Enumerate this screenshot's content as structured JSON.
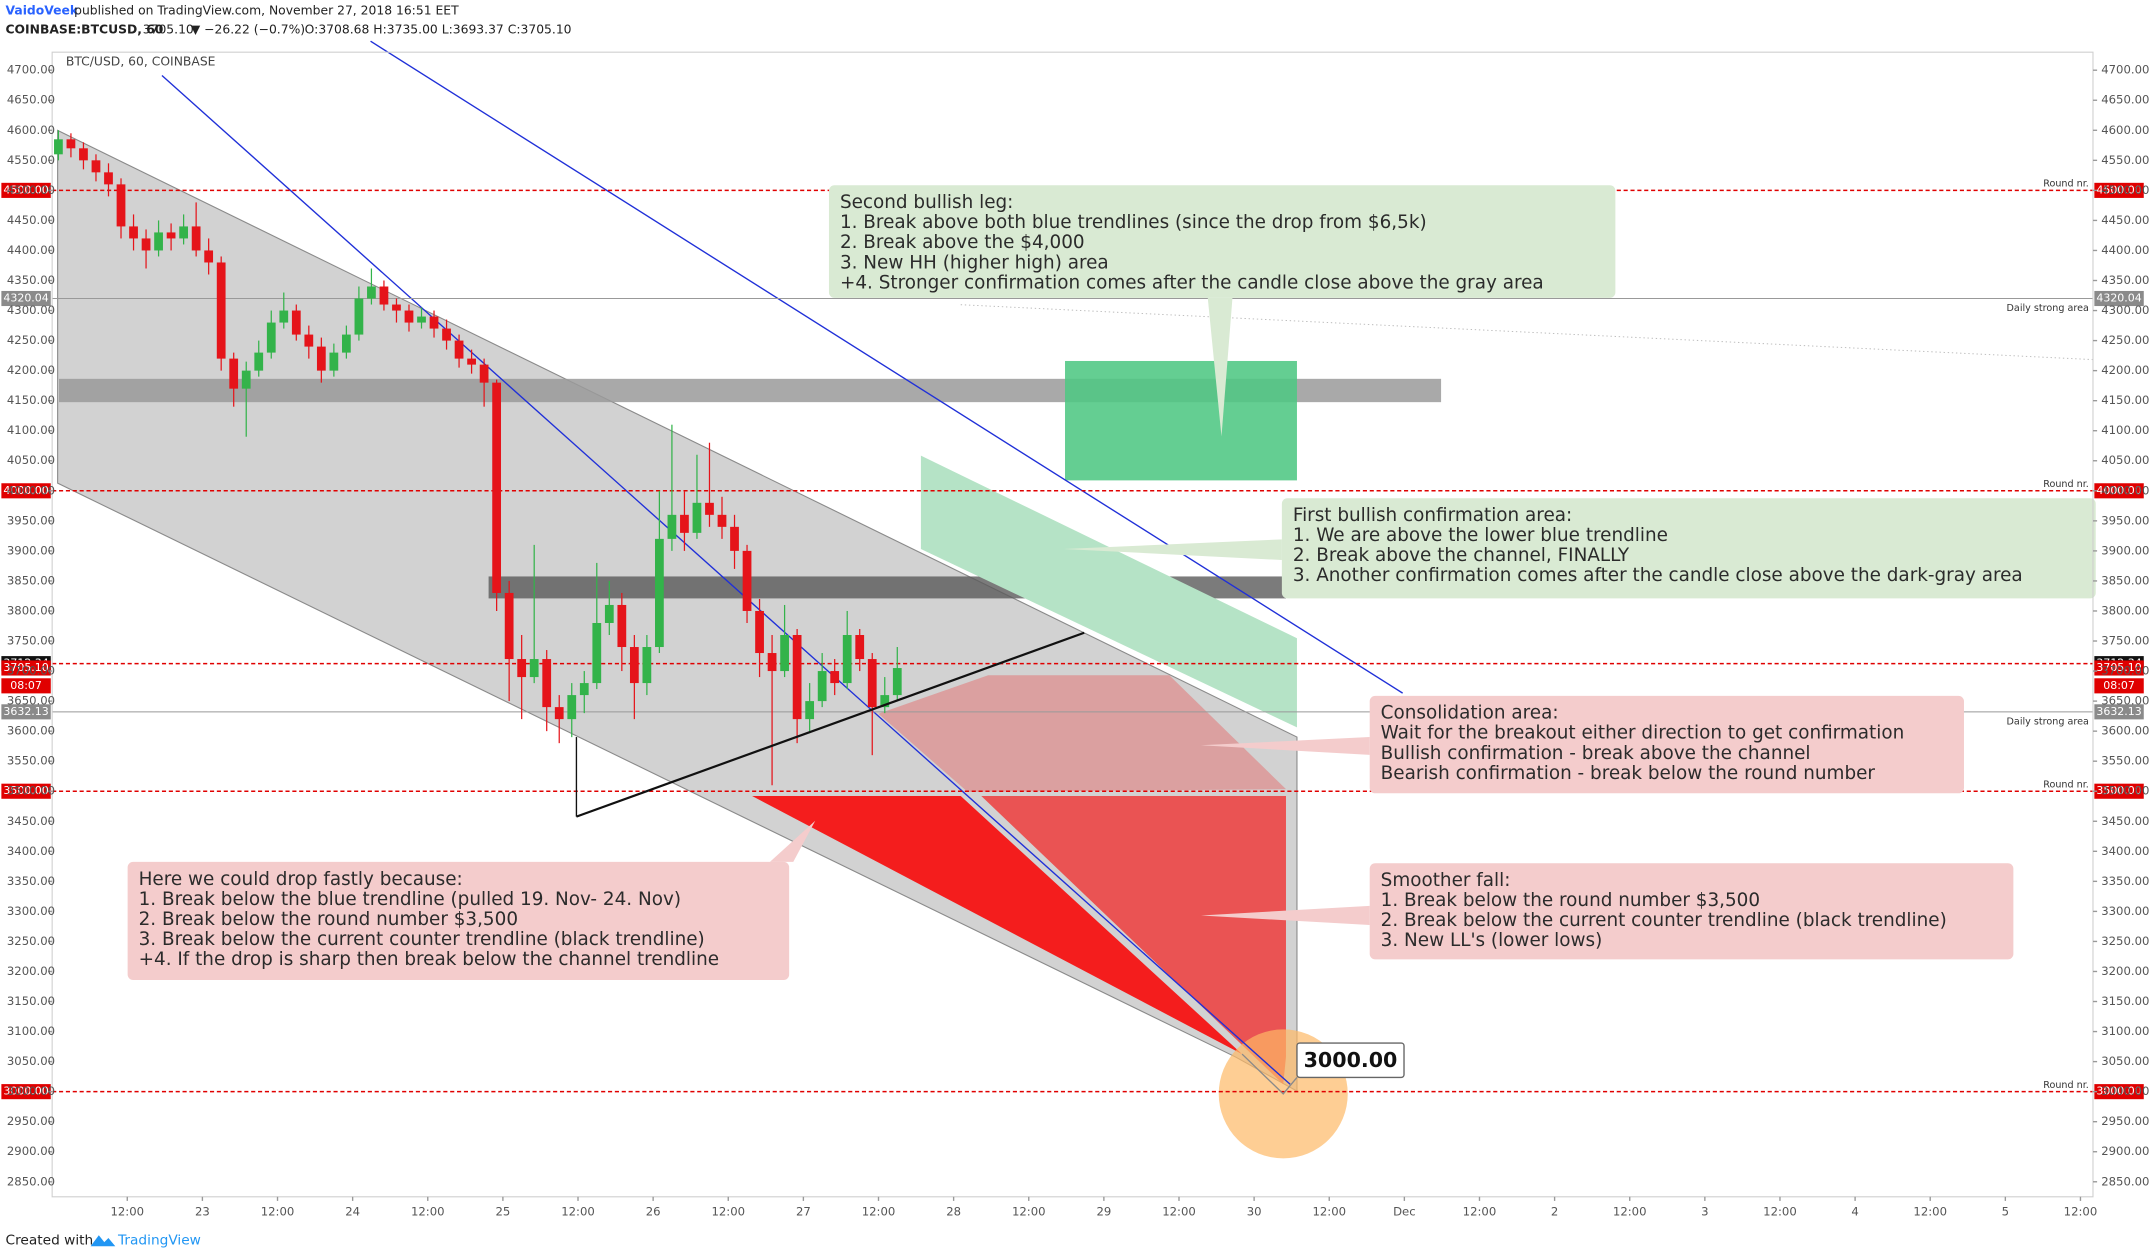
{
  "header": {
    "author": "VaidoVeek",
    "published": "published on TradingView.com, November 27, 2018 16:51 EET",
    "symbol": "COINBASE:BTCUSD, 60",
    "last": "3705.10",
    "change": "▼ −26.22 (−0.7%)",
    "ohlc": "O:3708.68 H:3735.00 L:3693.37 C:3705.10"
  },
  "footer": {
    "created": "Created with",
    "brand": "TradingView"
  },
  "chart_data": {
    "type": "candlestick",
    "title": "BTC/USD, 60, COINBASE",
    "up_color": "#33b34a",
    "down_color": "#e5141a",
    "grid": false,
    "xlim": [
      0,
      326
    ],
    "ylim": [
      2825,
      4730
    ],
    "x": [
      1,
      3,
      5,
      7,
      9,
      11,
      13,
      15,
      17,
      19,
      21,
      23,
      25,
      27,
      29,
      31,
      33,
      35,
      37,
      39,
      41,
      43,
      45,
      47,
      49,
      51,
      53,
      55,
      57,
      59,
      61,
      63,
      65,
      67,
      69,
      71,
      73,
      75,
      77,
      79,
      81,
      83,
      85,
      87,
      89,
      91,
      93,
      95,
      97,
      99,
      101,
      103,
      105,
      107,
      109,
      111,
      113,
      115,
      117,
      119,
      121,
      123,
      125,
      127,
      129,
      131,
      133,
      135
    ],
    "open": [
      4560,
      4585,
      4570,
      4550,
      4530,
      4510,
      4440,
      4420,
      4400,
      4430,
      4420,
      4440,
      4400,
      4380,
      4220,
      4170,
      4200,
      4230,
      4280,
      4300,
      4260,
      4240,
      4200,
      4230,
      4260,
      4320,
      4340,
      4310,
      4300,
      4280,
      4290,
      4270,
      4250,
      4220,
      4210,
      4180,
      3830,
      3720,
      3690,
      3720,
      3640,
      3620,
      3660,
      3680,
      3780,
      3810,
      3740,
      3680,
      3740,
      3920,
      3960,
      3930,
      3980,
      3960,
      3940,
      3900,
      3800,
      3730,
      3700,
      3760,
      3620,
      3650,
      3700,
      3680,
      3760,
      3720,
      3640,
      3660
    ],
    "high": [
      4600,
      4595,
      4580,
      4560,
      4545,
      4520,
      4460,
      4435,
      4450,
      4445,
      4460,
      4480,
      4420,
      4390,
      4230,
      4215,
      4250,
      4300,
      4330,
      4310,
      4275,
      4255,
      4245,
      4275,
      4340,
      4370,
      4350,
      4320,
      4310,
      4305,
      4300,
      4285,
      4260,
      4235,
      4220,
      4185,
      3850,
      3760,
      3910,
      3735,
      3660,
      3680,
      3700,
      3880,
      3850,
      3830,
      3760,
      3760,
      4000,
      4110,
      4000,
      4060,
      4080,
      3990,
      3960,
      3910,
      3820,
      3760,
      3810,
      3770,
      3680,
      3730,
      3720,
      3800,
      3770,
      3730,
      3690,
      3740
    ],
    "low": [
      4550,
      4555,
      4535,
      4515,
      4490,
      4420,
      4400,
      4370,
      4390,
      4400,
      4410,
      4390,
      4360,
      4200,
      4140,
      4090,
      4190,
      4220,
      4270,
      4250,
      4220,
      4180,
      4190,
      4220,
      4250,
      4310,
      4300,
      4280,
      4265,
      4270,
      4255,
      4235,
      4205,
      4195,
      4140,
      3800,
      3650,
      3620,
      3680,
      3600,
      3580,
      3590,
      3630,
      3670,
      3760,
      3700,
      3620,
      3660,
      3730,
      3900,
      3900,
      3920,
      3940,
      3920,
      3870,
      3780,
      3690,
      3510,
      3690,
      3580,
      3600,
      3640,
      3660,
      3670,
      3700,
      3560,
      3630,
      3650
    ],
    "close": [
      4585,
      4570,
      4550,
      4530,
      4510,
      4440,
      4420,
      4400,
      4430,
      4420,
      4440,
      4400,
      4380,
      4220,
      4170,
      4200,
      4230,
      4280,
      4300,
      4260,
      4240,
      4200,
      4230,
      4260,
      4320,
      4340,
      4310,
      4300,
      4280,
      4290,
      4270,
      4250,
      4220,
      4210,
      4180,
      3830,
      3720,
      3690,
      3720,
      3640,
      3620,
      3660,
      3680,
      3780,
      3810,
      3740,
      3680,
      3740,
      3920,
      3960,
      3930,
      3980,
      3960,
      3940,
      3900,
      3800,
      3730,
      3700,
      3760,
      3620,
      3650,
      3700,
      3680,
      3760,
      3720,
      3640,
      3660,
      3705
    ],
    "xticks": [
      {
        "value": 12,
        "label": "12:00"
      },
      {
        "value": 24,
        "label": "23"
      },
      {
        "value": 36,
        "label": "12:00"
      },
      {
        "value": 48,
        "label": "24"
      },
      {
        "value": 60,
        "label": "12:00"
      },
      {
        "value": 72,
        "label": "25"
      },
      {
        "value": 84,
        "label": "12:00"
      },
      {
        "value": 96,
        "label": "26"
      },
      {
        "value": 108,
        "label": "12:00"
      },
      {
        "value": 120,
        "label": "27"
      },
      {
        "value": 132,
        "label": "12:00"
      },
      {
        "value": 144,
        "label": "28"
      },
      {
        "value": 156,
        "label": "12:00"
      },
      {
        "value": 168,
        "label": "29"
      },
      {
        "value": 180,
        "label": "12:00"
      },
      {
        "value": 192,
        "label": "30"
      },
      {
        "value": 204,
        "label": "12:00"
      },
      {
        "value": 216,
        "label": "Dec"
      },
      {
        "value": 228,
        "label": "12:00"
      },
      {
        "value": 240,
        "label": "2"
      },
      {
        "value": 252,
        "label": "12:00"
      },
      {
        "value": 264,
        "label": "3"
      },
      {
        "value": 276,
        "label": "12:00"
      },
      {
        "value": 288,
        "label": "4"
      },
      {
        "value": 300,
        "label": "12:00"
      },
      {
        "value": 312,
        "label": "5"
      },
      {
        "value": 324,
        "label": "12:00"
      }
    ],
    "yticks": [
      {
        "value": 2850,
        "label": "2850.00"
      },
      {
        "value": 2900,
        "label": "2900.00"
      },
      {
        "value": 2950,
        "label": "2950.00"
      },
      {
        "value": 3000,
        "label": "3000.00"
      },
      {
        "value": 3050,
        "label": "3050.00"
      },
      {
        "value": 3100,
        "label": "3100.00"
      },
      {
        "value": 3150,
        "label": "3150.00"
      },
      {
        "value": 3200,
        "label": "3200.00"
      },
      {
        "value": 3250,
        "label": "3250.00"
      },
      {
        "value": 3300,
        "label": "3300.00"
      },
      {
        "value": 3350,
        "label": "3350.00"
      },
      {
        "value": 3400,
        "label": "3400.00"
      },
      {
        "value": 3450,
        "label": "3450.00"
      },
      {
        "value": 3500,
        "label": "3500.00"
      },
      {
        "value": 3550,
        "label": "3550.00"
      },
      {
        "value": 3600,
        "label": "3600.00"
      },
      {
        "value": 3650,
        "label": "3650.00"
      },
      {
        "value": 3700,
        "label": "3700.00"
      },
      {
        "value": 3750,
        "label": "3750.00"
      },
      {
        "value": 3800,
        "label": "3800.00"
      },
      {
        "value": 3850,
        "label": "3850.00"
      },
      {
        "value": 3900,
        "label": "3900.00"
      },
      {
        "value": 3950,
        "label": "3950.00"
      },
      {
        "value": 4000,
        "label": "4000.00"
      },
      {
        "value": 4050,
        "label": "4050.00"
      },
      {
        "value": 4100,
        "label": "4100.00"
      },
      {
        "value": 4150,
        "label": "4150.00"
      },
      {
        "value": 4200,
        "label": "4200.00"
      },
      {
        "value": 4250,
        "label": "4250.00"
      },
      {
        "value": 4300,
        "label": "4300.00"
      },
      {
        "value": 4350,
        "label": "4350.00"
      },
      {
        "value": 4400,
        "label": "4400.00"
      },
      {
        "value": 4450,
        "label": "4450.00"
      },
      {
        "value": 4500,
        "label": "4500.00"
      },
      {
        "value": 4550,
        "label": "4550.00"
      },
      {
        "value": 4600,
        "label": "4600.00"
      },
      {
        "value": 4650,
        "label": "4650.00"
      },
      {
        "value": 4700,
        "label": "4700.00"
      }
    ],
    "levels": [
      {
        "value": 4500,
        "label": "4500.00",
        "note": "Round nr.",
        "color": "#e00000",
        "dash": true,
        "tag": "#e00000"
      },
      {
        "value": 4320.04,
        "label": "4320.04",
        "note": "Daily strong area",
        "color": "#999999",
        "dash": false,
        "tag": "#8a8a8a"
      },
      {
        "value": 4000,
        "label": "4000.00",
        "note": "Round nr.",
        "color": "#e00000",
        "dash": true,
        "tag": "#e00000"
      },
      {
        "value": 3712.34,
        "label": "3712.34",
        "color": "#e00000",
        "dash": true,
        "tag": "#111111"
      },
      {
        "value": 3705.1,
        "label": "3705.10",
        "tag": "#e00000"
      },
      {
        "value": 3632.13,
        "label": "3632.13",
        "note": "Daily strong area",
        "color": "#999999",
        "dash": false,
        "tag": "#8a8a8a"
      },
      {
        "value": 3500,
        "label": "3500.00",
        "note": "Round nr.",
        "color": "#e00000",
        "dash": true,
        "tag": "#e00000"
      },
      {
        "value": 3000,
        "label": "3000.00",
        "note": "Round nr.",
        "color": "#e00000",
        "dash": true,
        "tag": "#e00000"
      }
    ],
    "countdown": "08:07",
    "target_label": "3000.00",
    "annotations": [
      {
        "color": "#d9ead3",
        "lines": [
          "Second bullish leg:",
          "1. Break above both blue trendlines (since the drop from $6,5k)",
          "2. Break above the $4,000",
          "3. New HH (higher high) area",
          "+4. Stronger confirmation comes after the candle close above the gray area"
        ]
      },
      {
        "color": "#d9ead3",
        "lines": [
          "First bullish confirmation area:",
          "1. We are above the lower blue trendline",
          "2. Break above the channel, FINALLY",
          "3. Another confirmation comes after the candle close above the dark-gray area"
        ]
      },
      {
        "color": "#f4cccc",
        "lines": [
          "Consolidation area:",
          "Wait for the breakout either direction to get confirmation",
          "Bullish confirmation - break above the channel",
          "Bearish confirmation - break below the round number"
        ]
      },
      {
        "color": "#f4cccc",
        "lines": [
          "Smoother fall:",
          "1. Break below the round number $3,500",
          "2. Break below the current counter trendline (black trendline)",
          "3. New LL's (lower lows)"
        ]
      },
      {
        "color": "#f4cccc",
        "lines": [
          "Here we could drop fastly because:",
          "1. Break below the blue trendline (pulled 19. Nov- 24. Nov)",
          "2. Break below the round number $3,500",
          "3. Break below the current counter trendline (black trendline)",
          "+4. If the drop is sharp then break below the channel trendline"
        ]
      }
    ]
  }
}
